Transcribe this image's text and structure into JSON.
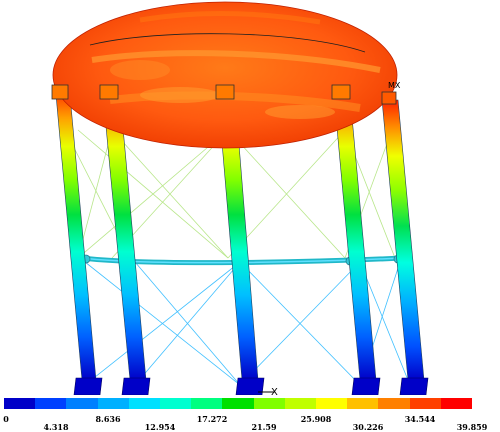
{
  "view": {
    "axis_x_label": "X",
    "corner_label": "MX"
  },
  "legend": {
    "colors": [
      "#0000c8",
      "#0040ff",
      "#0080ff",
      "#00b0ff",
      "#00e0ff",
      "#00ffd0",
      "#00ff80",
      "#00e000",
      "#80ff00",
      "#c0ff00",
      "#ffff00",
      "#ffc000",
      "#ff8000",
      "#ff4000",
      "#ff0000"
    ],
    "values": [
      "0",
      "4.318",
      "8.636",
      "12.954",
      "17.272",
      "21.59",
      "25.908",
      "30.226",
      "34.544",
      "39.859"
    ]
  },
  "colors": {
    "tank": "#ff5a1a",
    "tank_dark": "#e82800",
    "tank_light": "#ff8a20",
    "brace_upper": "#b8e68a",
    "brace_lower": "#40c0ff",
    "ring_beam": "#20c8d8"
  }
}
